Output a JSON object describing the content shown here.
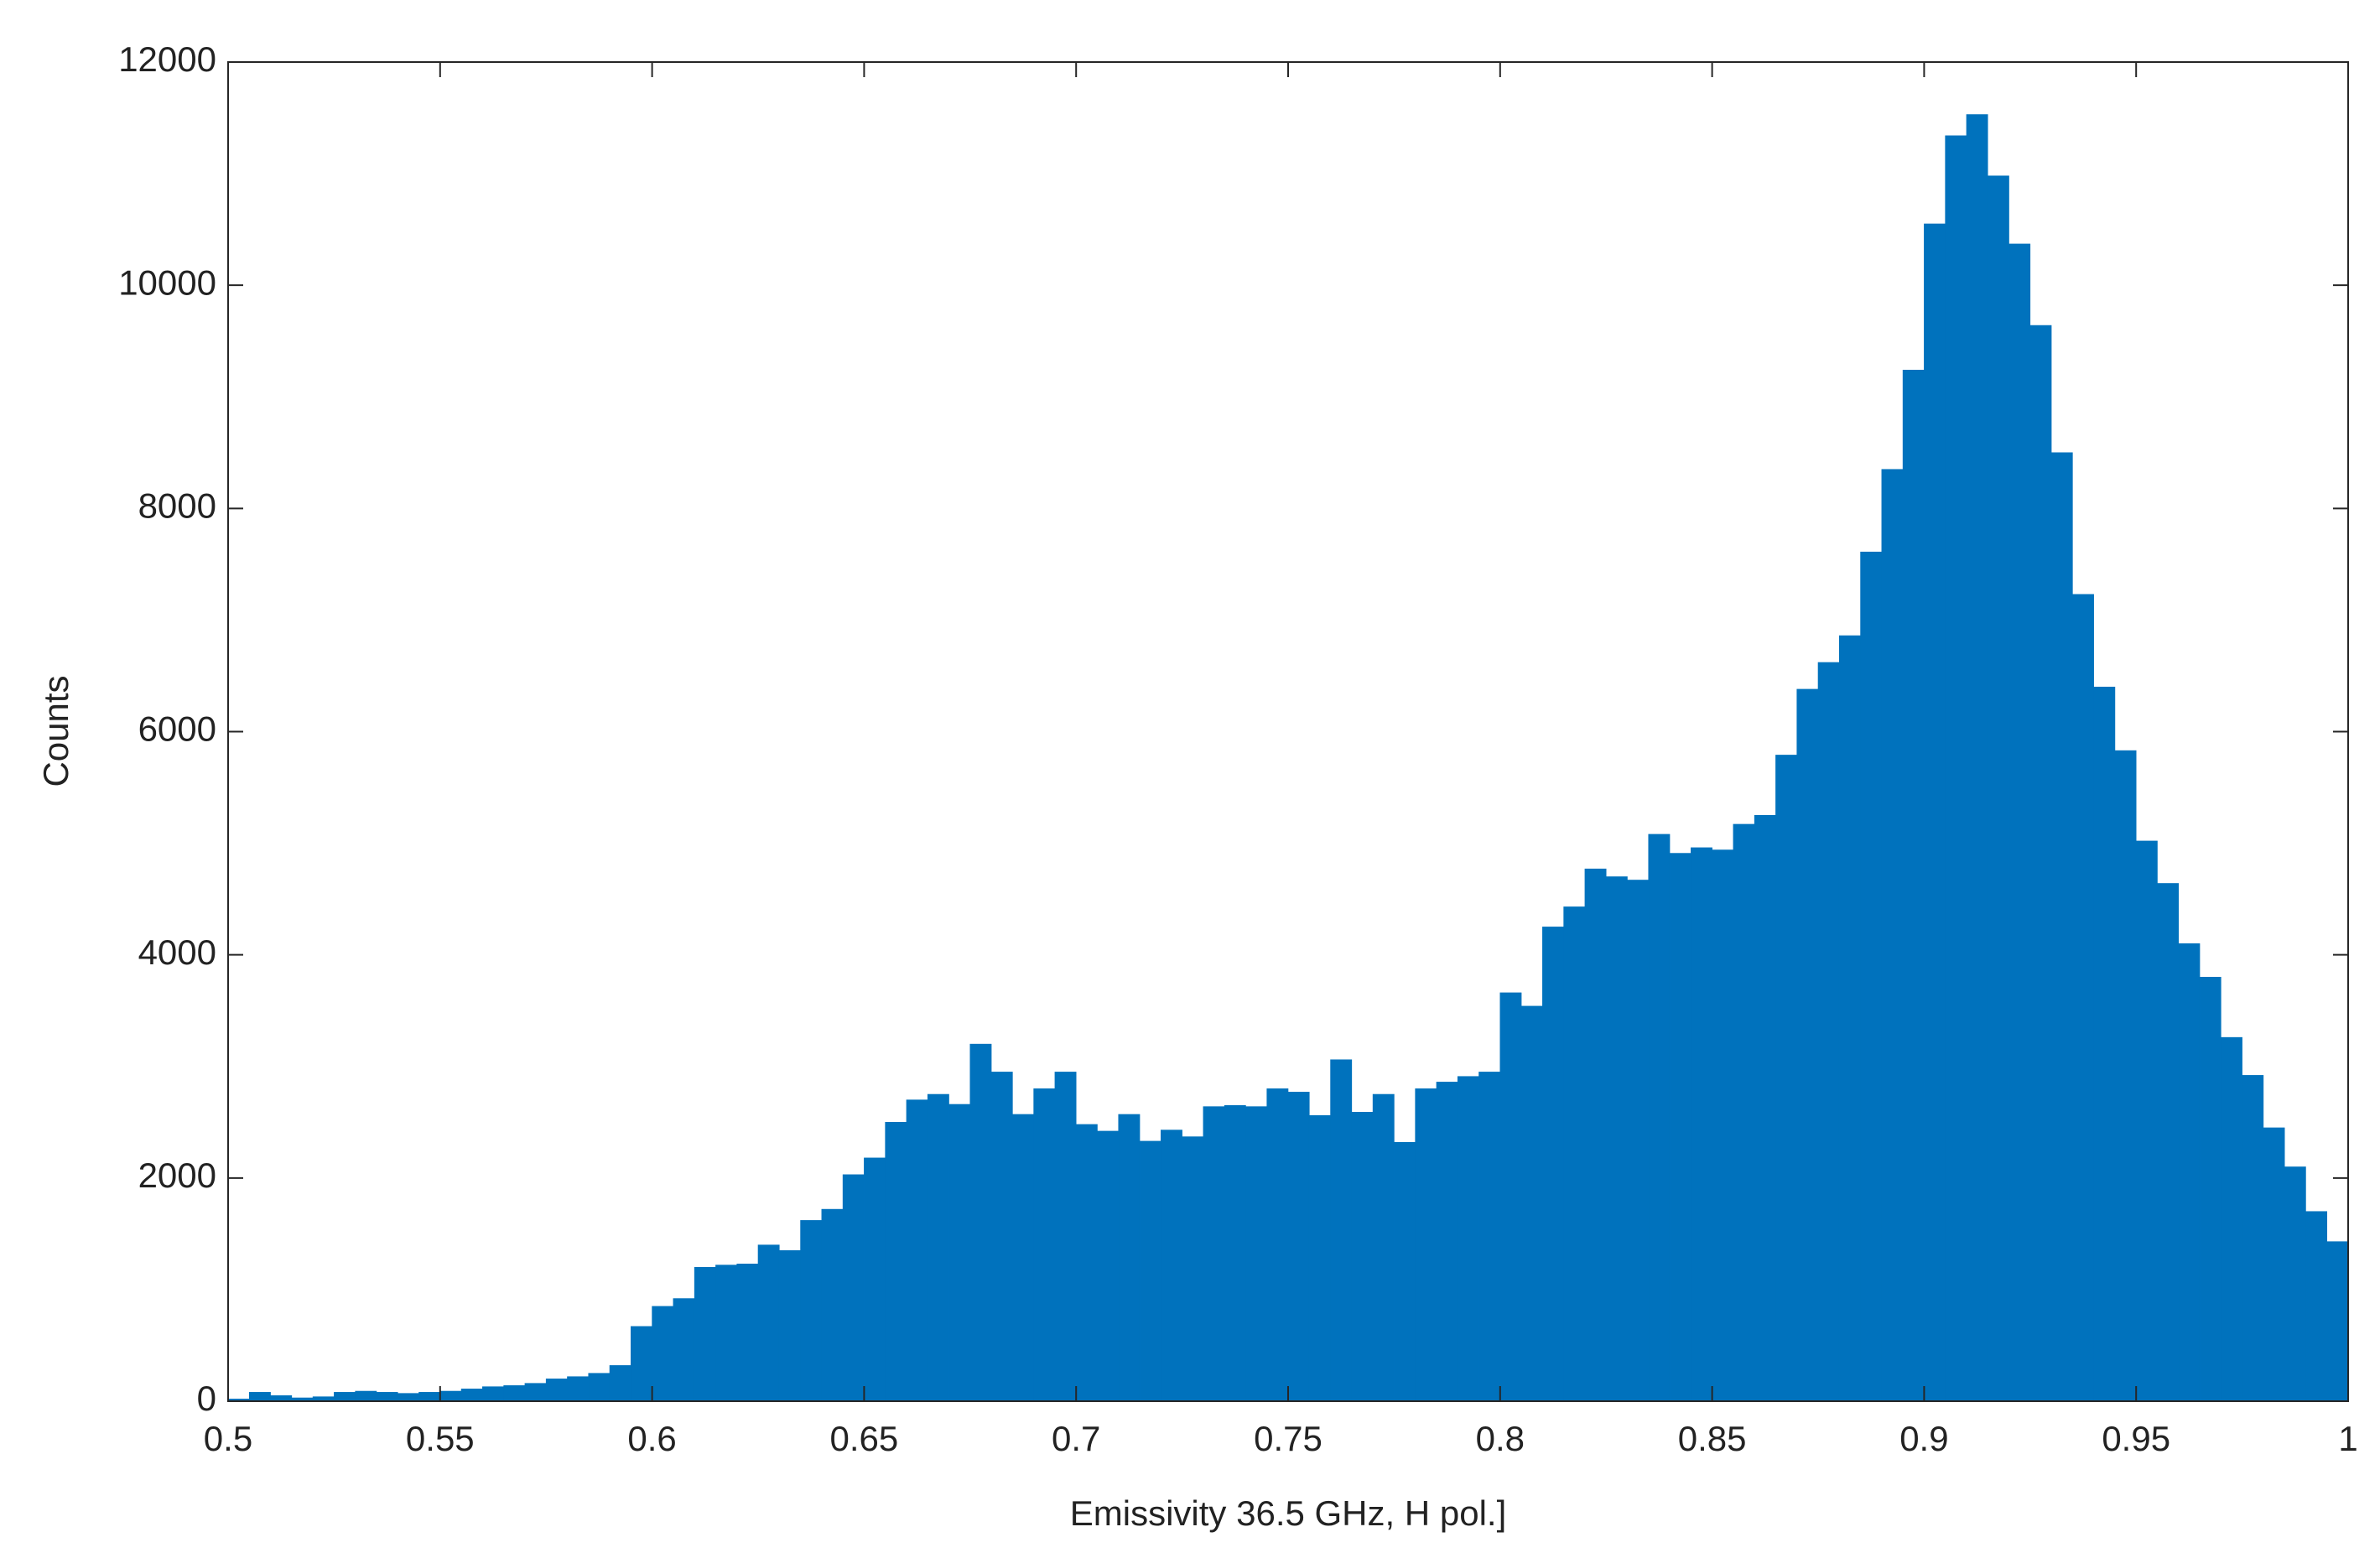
{
  "chart_data": {
    "type": "histogram",
    "xlabel": "Emissivity 36.5 GHz, H pol.]",
    "ylabel": "Counts",
    "color": "#0072BD",
    "bins": [
      0.5,
      0.505,
      0.51,
      0.515,
      0.52,
      0.525,
      0.53,
      0.535,
      0.54,
      0.545,
      0.55,
      0.555,
      0.56,
      0.565,
      0.57,
      0.575,
      0.58,
      0.585,
      0.59,
      0.595,
      0.6,
      0.605,
      0.61,
      0.615,
      0.62,
      0.625,
      0.63,
      0.635,
      0.64,
      0.645,
      0.65,
      0.655,
      0.66,
      0.665,
      0.67,
      0.675,
      0.68,
      0.685,
      0.69,
      0.695,
      0.7,
      0.705,
      0.71,
      0.715,
      0.72,
      0.725,
      0.73,
      0.735,
      0.74,
      0.745,
      0.75,
      0.755,
      0.76,
      0.765,
      0.77,
      0.775,
      0.78,
      0.785,
      0.79,
      0.795,
      0.8,
      0.805,
      0.81,
      0.815,
      0.82,
      0.825,
      0.83,
      0.835,
      0.84,
      0.845,
      0.85,
      0.855,
      0.86,
      0.865,
      0.87,
      0.875,
      0.88,
      0.885,
      0.89,
      0.895,
      0.9,
      0.905,
      0.91,
      0.915,
      0.92,
      0.925,
      0.93,
      0.935,
      0.94,
      0.945,
      0.95,
      0.955,
      0.96,
      0.965,
      0.97,
      0.975,
      0.98,
      0.985,
      0.99,
      0.995,
      1
    ],
    "values": [
      20,
      80,
      50,
      30,
      40,
      80,
      90,
      80,
      70,
      80,
      90,
      110,
      130,
      140,
      160,
      200,
      220,
      250,
      320,
      670,
      850,
      920,
      1200,
      1220,
      1230,
      1400,
      1350,
      1620,
      1720,
      2030,
      2180,
      2500,
      2700,
      2750,
      2660,
      3200,
      2950,
      2570,
      2800,
      2950,
      2480,
      2420,
      2570,
      2330,
      2430,
      2370,
      2640,
      2650,
      2640,
      2800,
      2770,
      2560,
      3060,
      2590,
      2750,
      2320,
      2800,
      2860,
      2910,
      2950,
      3660,
      3540,
      4250,
      4430,
      4770,
      4700,
      4670,
      5080,
      4910,
      4960,
      4940,
      5170,
      5250,
      5790,
      6380,
      6620,
      6860,
      7610,
      8350,
      9240,
      10550,
      11340,
      11530,
      10980,
      10370,
      9640,
      8500,
      7230,
      6400,
      5830,
      5020,
      4640,
      4100,
      3800,
      3260,
      2920,
      2450,
      2100,
      1700,
      1430
    ],
    "xlim": [
      0.5,
      1
    ],
    "ylim": [
      0,
      12000
    ],
    "xticks": [
      0.5,
      0.55,
      0.6,
      0.65,
      0.7,
      0.75,
      0.8,
      0.85,
      0.9,
      0.95,
      1
    ],
    "yticks": [
      0,
      2000,
      4000,
      6000,
      8000,
      10000,
      12000
    ]
  }
}
